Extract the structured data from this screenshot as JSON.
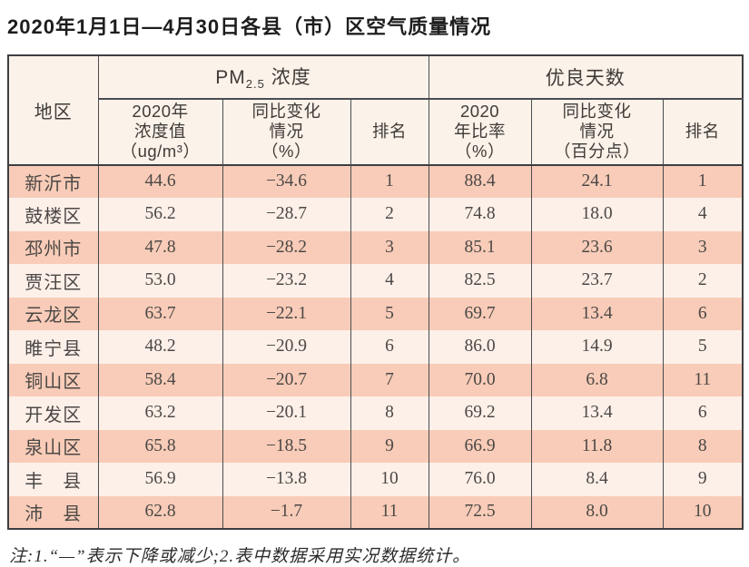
{
  "title": "2020年1月1日—4月30日各县（市）区空气质量情况",
  "table": {
    "region_header": "地区",
    "groups": [
      {
        "prefix": "PM",
        "sub": "2.5",
        "suffix": " 浓度"
      },
      {
        "label": "优良天数"
      }
    ],
    "subheaders": [
      "2020年\n浓度值\n（ug/m³）",
      "同比变化\n情况\n（%）",
      "排名",
      "2020\n年比率\n（%）",
      "同比变化\n情况\n（百分点）",
      "排名"
    ],
    "rows": [
      {
        "region": "新沂市",
        "pm_value": "44.6",
        "pm_change": "−34.6",
        "pm_rank": "1",
        "good_rate": "88.4",
        "good_change": "24.1",
        "good_rank": "1"
      },
      {
        "region": "鼓楼区",
        "pm_value": "56.2",
        "pm_change": "−28.7",
        "pm_rank": "2",
        "good_rate": "74.8",
        "good_change": "18.0",
        "good_rank": "4"
      },
      {
        "region": "邳州市",
        "pm_value": "47.8",
        "pm_change": "−28.2",
        "pm_rank": "3",
        "good_rate": "85.1",
        "good_change": "23.6",
        "good_rank": "3"
      },
      {
        "region": "贾汪区",
        "pm_value": "53.0",
        "pm_change": "−23.2",
        "pm_rank": "4",
        "good_rate": "82.5",
        "good_change": "23.7",
        "good_rank": "2"
      },
      {
        "region": "云龙区",
        "pm_value": "63.7",
        "pm_change": "−22.1",
        "pm_rank": "5",
        "good_rate": "69.7",
        "good_change": "13.4",
        "good_rank": "6"
      },
      {
        "region": "睢宁县",
        "pm_value": "48.2",
        "pm_change": "−20.9",
        "pm_rank": "6",
        "good_rate": "86.0",
        "good_change": "14.9",
        "good_rank": "5"
      },
      {
        "region": "铜山区",
        "pm_value": "58.4",
        "pm_change": "−20.7",
        "pm_rank": "7",
        "good_rate": "70.0",
        "good_change": "6.8",
        "good_rank": "11"
      },
      {
        "region": "开发区",
        "pm_value": "63.2",
        "pm_change": "−20.1",
        "pm_rank": "8",
        "good_rate": "69.2",
        "good_change": "13.4",
        "good_rank": "6"
      },
      {
        "region": "泉山区",
        "pm_value": "65.8",
        "pm_change": "−18.5",
        "pm_rank": "9",
        "good_rate": "66.9",
        "good_change": "11.8",
        "good_rank": "8"
      },
      {
        "region": "丰　县",
        "pm_value": "56.9",
        "pm_change": "−13.8",
        "pm_rank": "10",
        "good_rate": "76.0",
        "good_change": "8.4",
        "good_rank": "9"
      },
      {
        "region": "沛　县",
        "pm_value": "62.8",
        "pm_change": "−1.7",
        "pm_rank": "11",
        "good_rate": "72.5",
        "good_change": "8.0",
        "good_rank": "10"
      }
    ]
  },
  "note": "注:1.“—”表示下降或减少;2.表中数据采用实况数据统计。",
  "colors": {
    "stripe_dark": "#f8ccb8",
    "stripe_light": "#fdf0e9",
    "header_bg": "#fbf2e9",
    "border_dark": "#3c3f42",
    "border_thin": "#4a4d50"
  }
}
